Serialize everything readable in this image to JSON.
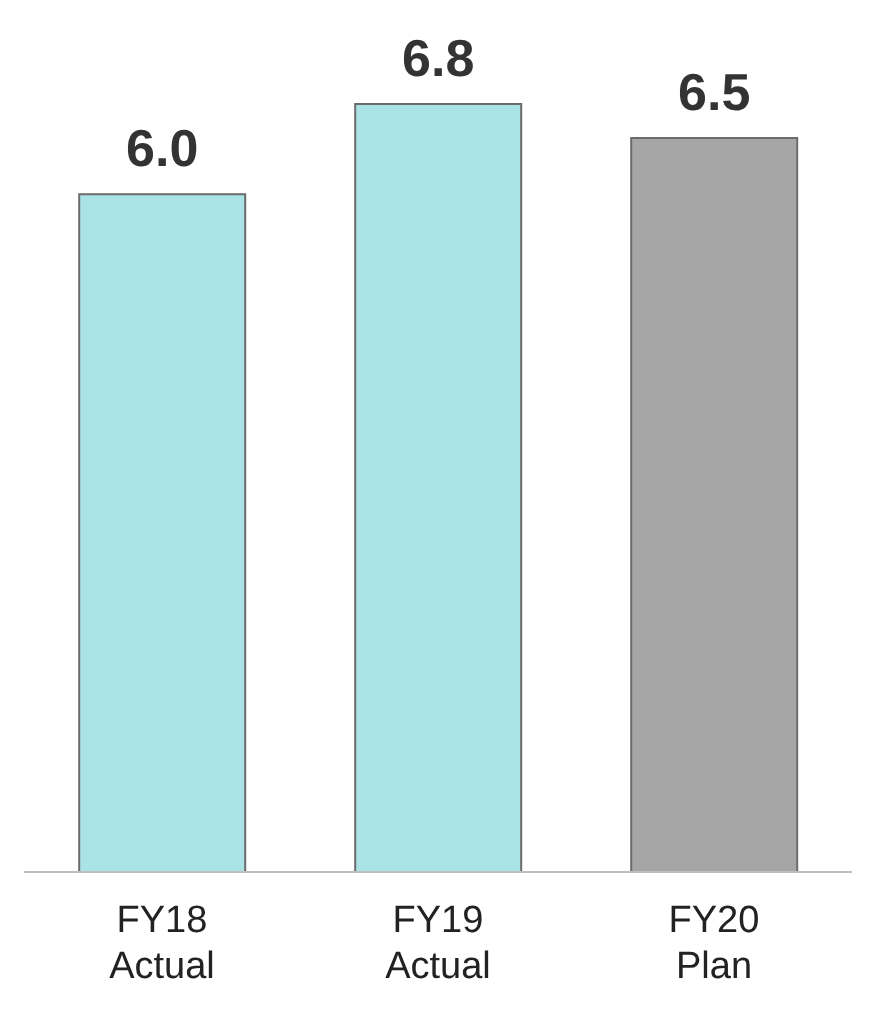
{
  "chart_data": {
    "type": "bar",
    "categories": [
      "FY18\nActual",
      "FY19\nActual",
      "FY20\nPlan"
    ],
    "values": [
      6.0,
      6.8,
      6.5
    ],
    "colors": [
      "#a9e3e6",
      "#a9e3e6",
      "#a6a6a6"
    ],
    "value_labels": [
      "6.0",
      "6.8",
      "6.5"
    ]
  }
}
